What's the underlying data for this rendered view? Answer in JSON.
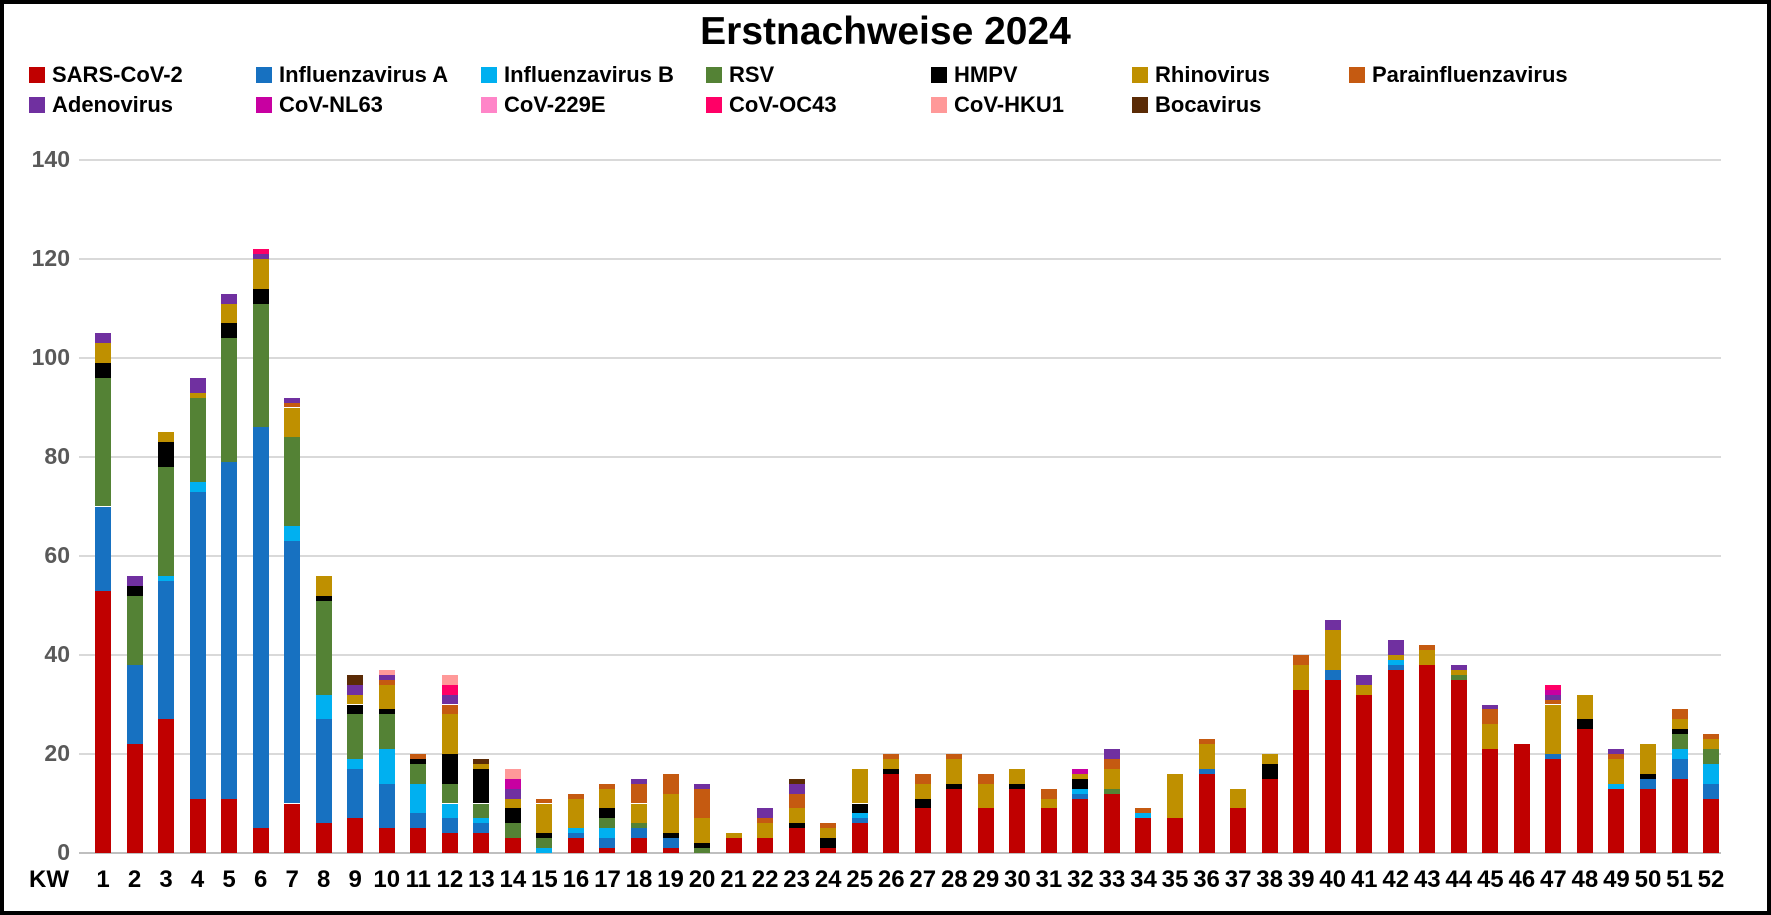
{
  "title": "Erstnachweise 2024",
  "chart_data": {
    "type": "bar",
    "stacked": true,
    "title": "Erstnachweise 2024",
    "xlabel": "",
    "ylabel": "",
    "x_axis_prefix": "KW",
    "ylim": [
      0,
      140
    ],
    "ytick_step": 20,
    "grid": true,
    "legend_position": "top",
    "categories": [
      "1",
      "2",
      "3",
      "4",
      "5",
      "6",
      "7",
      "8",
      "9",
      "10",
      "11",
      "12",
      "13",
      "14",
      "15",
      "16",
      "17",
      "18",
      "19",
      "20",
      "21",
      "22",
      "23",
      "24",
      "25",
      "26",
      "27",
      "28",
      "29",
      "30",
      "31",
      "32",
      "33",
      "34",
      "35",
      "36",
      "37",
      "38",
      "39",
      "40",
      "41",
      "42",
      "43",
      "44",
      "45",
      "46",
      "47",
      "48",
      "49",
      "50",
      "51",
      "52"
    ],
    "series": [
      {
        "name": "SARS-CoV-2",
        "color": "#C00000",
        "values": [
          53,
          22,
          27,
          11,
          11,
          5,
          10,
          6,
          7,
          5,
          5,
          4,
          4,
          3,
          0,
          3,
          1,
          3,
          1,
          0,
          3,
          3,
          5,
          1,
          6,
          16,
          9,
          13,
          9,
          13,
          9,
          11,
          12,
          7,
          7,
          16,
          9,
          15,
          33,
          35,
          32,
          37,
          38,
          35,
          21,
          22,
          19,
          25,
          13,
          13,
          15,
          11
        ]
      },
      {
        "name": "Influenzavirus A",
        "color": "#1771C1",
        "values": [
          17,
          16,
          28,
          62,
          68,
          81,
          53,
          21,
          10,
          9,
          3,
          3,
          2,
          0,
          0,
          1,
          2,
          2,
          2,
          0,
          0,
          0,
          0,
          0,
          1,
          0,
          0,
          0,
          0,
          0,
          0,
          1,
          0,
          0,
          0,
          1,
          0,
          0,
          0,
          2,
          0,
          1,
          0,
          0,
          0,
          0,
          1,
          0,
          0,
          2,
          4,
          3
        ]
      },
      {
        "name": "Influenzavirus B",
        "color": "#00B0F0",
        "values": [
          0,
          0,
          1,
          2,
          0,
          0,
          3,
          5,
          2,
          7,
          6,
          3,
          1,
          0,
          1,
          1,
          2,
          0,
          0,
          0,
          0,
          0,
          0,
          0,
          1,
          0,
          0,
          0,
          0,
          0,
          0,
          1,
          0,
          1,
          0,
          0,
          0,
          0,
          0,
          0,
          0,
          1,
          0,
          0,
          0,
          0,
          0,
          0,
          1,
          0,
          2,
          4
        ]
      },
      {
        "name": "RSV",
        "color": "#548235",
        "values": [
          26,
          14,
          22,
          17,
          25,
          25,
          18,
          19,
          9,
          7,
          4,
          4,
          3,
          3,
          2,
          0,
          2,
          1,
          0,
          1,
          0,
          0,
          0,
          0,
          0,
          0,
          0,
          0,
          0,
          0,
          0,
          0,
          1,
          0,
          0,
          0,
          0,
          0,
          0,
          0,
          0,
          0,
          0,
          1,
          0,
          0,
          0,
          0,
          0,
          0,
          3,
          3
        ]
      },
      {
        "name": "HMPV",
        "color": "#000000",
        "values": [
          3,
          2,
          5,
          0,
          3,
          3,
          0,
          1,
          2,
          1,
          1,
          6,
          7,
          3,
          1,
          0,
          2,
          0,
          1,
          1,
          0,
          0,
          1,
          2,
          2,
          1,
          2,
          1,
          0,
          1,
          0,
          2,
          0,
          0,
          0,
          0,
          0,
          3,
          0,
          0,
          0,
          0,
          0,
          0,
          0,
          0,
          0,
          2,
          0,
          1,
          1,
          0
        ]
      },
      {
        "name": "Rhinovirus",
        "color": "#BF9000",
        "values": [
          4,
          0,
          2,
          1,
          4,
          6,
          6,
          4,
          2,
          5,
          0,
          8,
          1,
          2,
          6,
          6,
          4,
          4,
          8,
          5,
          1,
          3,
          3,
          2,
          7,
          2,
          3,
          5,
          5,
          3,
          2,
          1,
          4,
          0,
          9,
          5,
          4,
          2,
          5,
          8,
          2,
          1,
          3,
          1,
          5,
          0,
          10,
          5,
          5,
          6,
          2,
          2
        ]
      },
      {
        "name": "Parainfluenzavirus",
        "color": "#C55A11",
        "values": [
          0,
          0,
          0,
          0,
          0,
          0,
          1,
          0,
          0,
          1,
          1,
          2,
          0,
          0,
          1,
          1,
          1,
          4,
          4,
          6,
          0,
          1,
          3,
          1,
          0,
          1,
          2,
          1,
          2,
          0,
          2,
          0,
          2,
          1,
          0,
          1,
          0,
          0,
          2,
          0,
          0,
          0,
          1,
          0,
          3,
          0,
          1,
          0,
          1,
          0,
          2,
          1
        ]
      },
      {
        "name": "Adenovirus",
        "color": "#7030A0",
        "values": [
          2,
          2,
          0,
          3,
          2,
          1,
          1,
          0,
          2,
          1,
          0,
          2,
          0,
          2,
          0,
          0,
          0,
          1,
          0,
          1,
          0,
          2,
          2,
          0,
          0,
          0,
          0,
          0,
          0,
          0,
          0,
          0,
          2,
          0,
          0,
          0,
          0,
          0,
          0,
          2,
          2,
          3,
          0,
          1,
          1,
          0,
          1,
          0,
          1,
          0,
          0,
          0
        ]
      },
      {
        "name": "CoV-NL63",
        "color": "#C800A1",
        "values": [
          0,
          0,
          0,
          0,
          0,
          0,
          0,
          0,
          0,
          0,
          0,
          0,
          0,
          2,
          0,
          0,
          0,
          0,
          0,
          0,
          0,
          0,
          0,
          0,
          0,
          0,
          0,
          0,
          0,
          0,
          0,
          1,
          0,
          0,
          0,
          0,
          0,
          0,
          0,
          0,
          0,
          0,
          0,
          0,
          0,
          0,
          1,
          0,
          0,
          0,
          0,
          0
        ]
      },
      {
        "name": "CoV-229E",
        "color": "#FF85C8",
        "values": [
          0,
          0,
          0,
          0,
          0,
          0,
          0,
          0,
          0,
          0,
          0,
          0,
          0,
          0,
          0,
          0,
          0,
          0,
          0,
          0,
          0,
          0,
          0,
          0,
          0,
          0,
          0,
          0,
          0,
          0,
          0,
          0,
          0,
          0,
          0,
          0,
          0,
          0,
          0,
          0,
          0,
          0,
          0,
          0,
          0,
          0,
          0,
          0,
          0,
          0,
          0,
          0
        ]
      },
      {
        "name": "CoV-OC43",
        "color": "#FF0066",
        "values": [
          0,
          0,
          0,
          0,
          0,
          1,
          0,
          0,
          0,
          0,
          0,
          2,
          0,
          0,
          0,
          0,
          0,
          0,
          0,
          0,
          0,
          0,
          0,
          0,
          0,
          0,
          0,
          0,
          0,
          0,
          0,
          0,
          0,
          0,
          0,
          0,
          0,
          0,
          0,
          0,
          0,
          0,
          0,
          0,
          0,
          0,
          1,
          0,
          0,
          0,
          0,
          0
        ]
      },
      {
        "name": "CoV-HKU1",
        "color": "#FF9999",
        "values": [
          0,
          0,
          0,
          0,
          0,
          0,
          0,
          0,
          0,
          1,
          0,
          2,
          0,
          2,
          0,
          0,
          0,
          0,
          0,
          0,
          0,
          0,
          0,
          0,
          0,
          0,
          0,
          0,
          0,
          0,
          0,
          0,
          0,
          0,
          0,
          0,
          0,
          0,
          0,
          0,
          0,
          0,
          0,
          0,
          0,
          0,
          0,
          0,
          0,
          0,
          0,
          0
        ]
      },
      {
        "name": "Bocavirus",
        "color": "#5B2B06",
        "values": [
          0,
          0,
          0,
          0,
          0,
          0,
          0,
          0,
          2,
          0,
          0,
          0,
          1,
          0,
          0,
          0,
          0,
          0,
          0,
          0,
          0,
          0,
          1,
          0,
          0,
          0,
          0,
          0,
          0,
          0,
          0,
          0,
          0,
          0,
          0,
          0,
          0,
          0,
          0,
          0,
          0,
          0,
          0,
          0,
          0,
          0,
          0,
          0,
          0,
          0,
          0,
          0
        ]
      }
    ],
    "colors": {
      "grid": "#d9d9d9",
      "axis_line": "#bfbfbf",
      "ytick_text": "#595959",
      "xtick_text": "#000000"
    }
  }
}
